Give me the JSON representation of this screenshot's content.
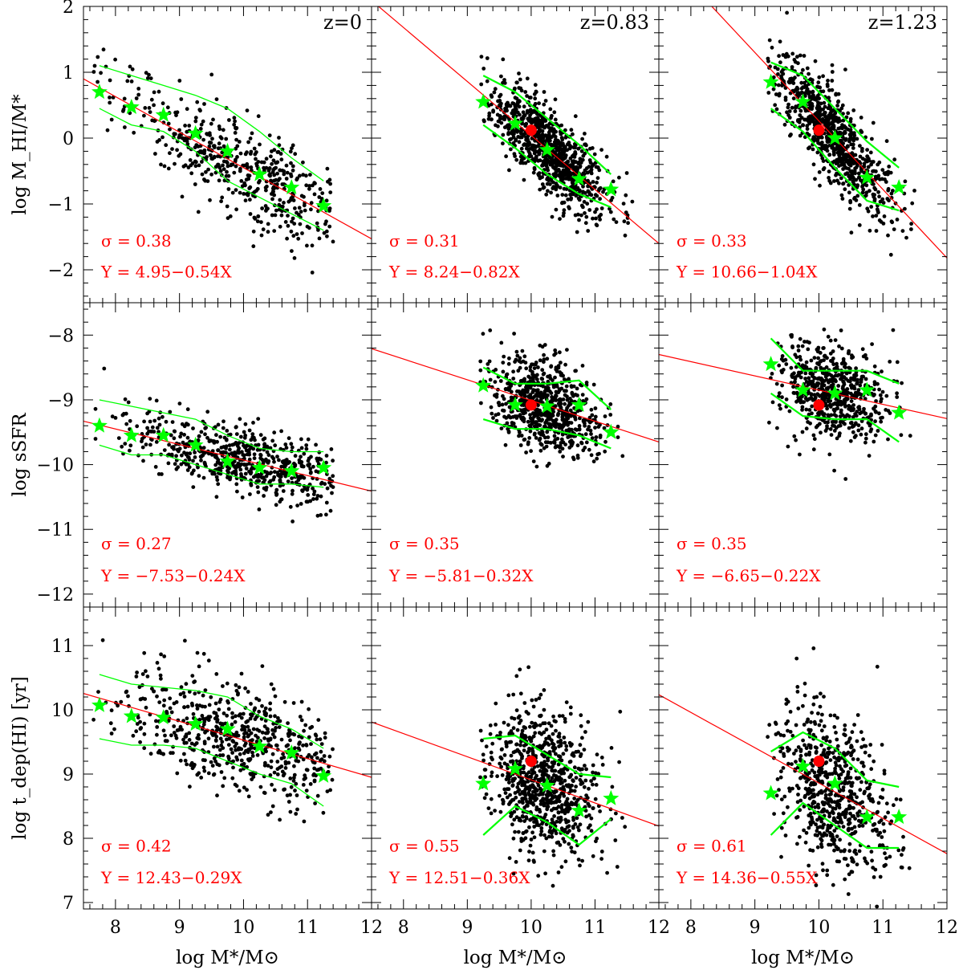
{
  "colors": {
    "points": "#000000",
    "median": "#00ff00",
    "fit": "#ff0000",
    "observed": "#ff0000",
    "text": "#ff0000"
  },
  "chart_data": {
    "type": "scatter",
    "title": "",
    "xlabel": "log M*/M⊙",
    "xlim": [
      7.5,
      12
    ],
    "x_ticks": [
      "8",
      "9",
      "10",
      "11",
      "12"
    ],
    "columns": [
      {
        "label": "z=0"
      },
      {
        "label": "z=0.83"
      },
      {
        "label": "z=1.23"
      }
    ],
    "rows": [
      {
        "ylabel": "log M_HI/M*",
        "ylim": [
          -2.5,
          2
        ],
        "y_ticks": [
          "−2",
          "−1",
          "0",
          "1",
          "2"
        ],
        "panels": [
          {
            "sigma": "σ = 0.38",
            "fit": "Y = 4.95−0.54X",
            "intercept": 4.95,
            "slope": -0.54,
            "median_x": [
              7.75,
              8.25,
              8.75,
              9.25,
              9.75,
              10.25,
              10.75,
              11.25
            ],
            "median_y": [
              0.7,
              0.47,
              0.35,
              0.07,
              -0.2,
              -0.55,
              -0.75,
              -1.03
            ],
            "upper_y": [
              1.1,
              0.95,
              0.8,
              0.65,
              0.45,
              0.1,
              -0.3,
              -0.65
            ],
            "lower_y": [
              0.45,
              0.2,
              0.1,
              -0.2,
              -0.65,
              -0.9,
              -1.15,
              -1.4
            ],
            "scatter_n": 500,
            "scatter_sd": 0.38,
            "x_range": [
              7.6,
              11.4
            ],
            "x_mean": 10.0,
            "x_sd": 0.9
          },
          {
            "sigma": "σ = 0.31",
            "fit": "Y = 8.24−0.82X",
            "intercept": 8.24,
            "slope": -0.82,
            "observed": [
              10.0,
              0.12
            ],
            "median_x": [
              9.25,
              9.75,
              10.25,
              10.75,
              11.25
            ],
            "median_y": [
              0.55,
              0.22,
              -0.18,
              -0.62,
              -0.78
            ],
            "upper_y": [
              0.95,
              0.7,
              0.3,
              -0.1,
              -0.55
            ],
            "lower_y": [
              0.2,
              -0.15,
              -0.55,
              -0.85,
              -1.05
            ],
            "scatter_n": 900,
            "scatter_sd": 0.31,
            "x_range": [
              9.2,
              11.6
            ],
            "x_mean": 10.25,
            "x_sd": 0.45
          },
          {
            "sigma": "σ = 0.33",
            "fit": "Y = 10.66−1.04X",
            "intercept": 10.66,
            "slope": -1.04,
            "observed": [
              10.0,
              0.12
            ],
            "median_x": [
              9.25,
              9.75,
              10.25,
              10.75,
              11.25
            ],
            "median_y": [
              0.85,
              0.55,
              0.0,
              -0.6,
              -0.75
            ],
            "upper_y": [
              1.15,
              0.95,
              0.45,
              -0.05,
              -0.45
            ],
            "lower_y": [
              0.45,
              0.1,
              -0.45,
              -0.95,
              -1.1
            ],
            "scatter_n": 800,
            "scatter_sd": 0.33,
            "x_range": [
              9.2,
              11.5
            ],
            "x_mean": 10.2,
            "x_sd": 0.45
          }
        ]
      },
      {
        "ylabel": "log sSFR",
        "ylim": [
          -12.2,
          -7.5
        ],
        "y_ticks": [
          "−12",
          "−11",
          "−10",
          "−9",
          "−8"
        ],
        "panels": [
          {
            "sigma": "σ = 0.27",
            "fit": "Y = −7.53−0.24X",
            "intercept": -7.53,
            "slope": -0.24,
            "median_x": [
              7.75,
              8.25,
              8.75,
              9.25,
              9.75,
              10.25,
              10.75,
              11.25
            ],
            "median_y": [
              -9.4,
              -9.55,
              -9.55,
              -9.7,
              -9.95,
              -10.05,
              -10.1,
              -10.05
            ],
            "upper_y": [
              -9.0,
              -9.1,
              -9.2,
              -9.3,
              -9.55,
              -9.75,
              -9.8,
              -9.8
            ],
            "lower_y": [
              -9.7,
              -9.85,
              -9.85,
              -10.0,
              -10.15,
              -10.3,
              -10.3,
              -10.35
            ],
            "scatter_n": 600,
            "scatter_sd": 0.27,
            "x_range": [
              7.6,
              11.4
            ],
            "x_mean": 10.0,
            "x_sd": 0.9
          },
          {
            "sigma": "σ = 0.35",
            "fit": "Y = −5.81−0.32X",
            "intercept": -5.81,
            "slope": -0.32,
            "observed": [
              10.0,
              -9.08
            ],
            "median_x": [
              9.25,
              9.75,
              10.25,
              10.75,
              11.25
            ],
            "median_y": [
              -8.78,
              -9.08,
              -9.1,
              -9.08,
              -9.5
            ],
            "upper_y": [
              -8.5,
              -8.75,
              -8.75,
              -8.7,
              -9.15
            ],
            "lower_y": [
              -9.3,
              -9.45,
              -9.45,
              -9.55,
              -9.75
            ],
            "scatter_n": 700,
            "scatter_sd": 0.35,
            "x_range": [
              9.2,
              11.5
            ],
            "x_mean": 10.2,
            "x_sd": 0.45
          },
          {
            "sigma": "σ = 0.35",
            "fit": "Y = −6.65−0.22X",
            "intercept": -6.65,
            "slope": -0.22,
            "observed": [
              10.0,
              -9.08
            ],
            "median_x": [
              9.25,
              9.75,
              10.25,
              10.75,
              11.25
            ],
            "median_y": [
              -8.45,
              -8.85,
              -8.9,
              -8.85,
              -9.2
            ],
            "upper_y": [
              -8.05,
              -8.55,
              -8.55,
              -8.55,
              -8.75
            ],
            "lower_y": [
              -8.9,
              -9.25,
              -9.3,
              -9.3,
              -9.65
            ],
            "scatter_n": 600,
            "scatter_sd": 0.35,
            "x_range": [
              9.2,
              11.5
            ],
            "x_mean": 10.2,
            "x_sd": 0.45
          }
        ]
      },
      {
        "ylabel": "log t_dep(HI) [yr]",
        "ylim": [
          6.9,
          11.6
        ],
        "y_ticks": [
          "7",
          "8",
          "9",
          "10",
          "11"
        ],
        "panels": [
          {
            "sigma": "σ = 0.42",
            "fit": "Y = 12.43−0.29X",
            "intercept": 12.43,
            "slope": -0.29,
            "median_x": [
              7.75,
              8.25,
              8.75,
              9.25,
              9.75,
              10.25,
              10.75,
              11.25
            ],
            "median_y": [
              10.07,
              9.9,
              9.88,
              9.78,
              9.7,
              9.43,
              9.33,
              8.97
            ],
            "upper_y": [
              10.55,
              10.4,
              10.35,
              10.3,
              10.2,
              9.9,
              9.7,
              9.4
            ],
            "lower_y": [
              9.55,
              9.45,
              9.45,
              9.4,
              9.2,
              9.0,
              8.85,
              8.5
            ],
            "scatter_n": 600,
            "scatter_sd": 0.42,
            "x_range": [
              7.6,
              11.4
            ],
            "x_mean": 10.0,
            "x_sd": 0.9
          },
          {
            "sigma": "σ = 0.55",
            "fit": "Y = 12.51−0.36X",
            "intercept": 12.51,
            "slope": -0.36,
            "observed": [
              10.0,
              9.2
            ],
            "median_x": [
              9.25,
              9.75,
              10.25,
              10.75,
              11.25
            ],
            "median_y": [
              8.85,
              9.08,
              8.82,
              8.43,
              8.62
            ],
            "upper_y": [
              9.55,
              9.6,
              9.3,
              9.0,
              8.95
            ],
            "lower_y": [
              8.05,
              8.5,
              8.25,
              7.9,
              8.3
            ],
            "scatter_n": 800,
            "scatter_sd": 0.55,
            "x_range": [
              9.2,
              11.5
            ],
            "x_mean": 10.2,
            "x_sd": 0.45
          },
          {
            "sigma": "σ = 0.61",
            "fit": "Y = 14.36−0.55X",
            "intercept": 14.36,
            "slope": -0.55,
            "observed": [
              10.0,
              9.2
            ],
            "median_x": [
              9.25,
              9.75,
              10.25,
              10.75,
              11.25
            ],
            "median_y": [
              8.7,
              9.12,
              8.85,
              8.33,
              8.33
            ],
            "upper_y": [
              9.35,
              9.65,
              9.4,
              8.9,
              8.8
            ],
            "lower_y": [
              8.05,
              8.55,
              8.2,
              7.85,
              7.85
            ],
            "scatter_n": 650,
            "scatter_sd": 0.61,
            "x_range": [
              9.2,
              11.5
            ],
            "x_mean": 10.2,
            "x_sd": 0.45
          }
        ]
      }
    ]
  }
}
